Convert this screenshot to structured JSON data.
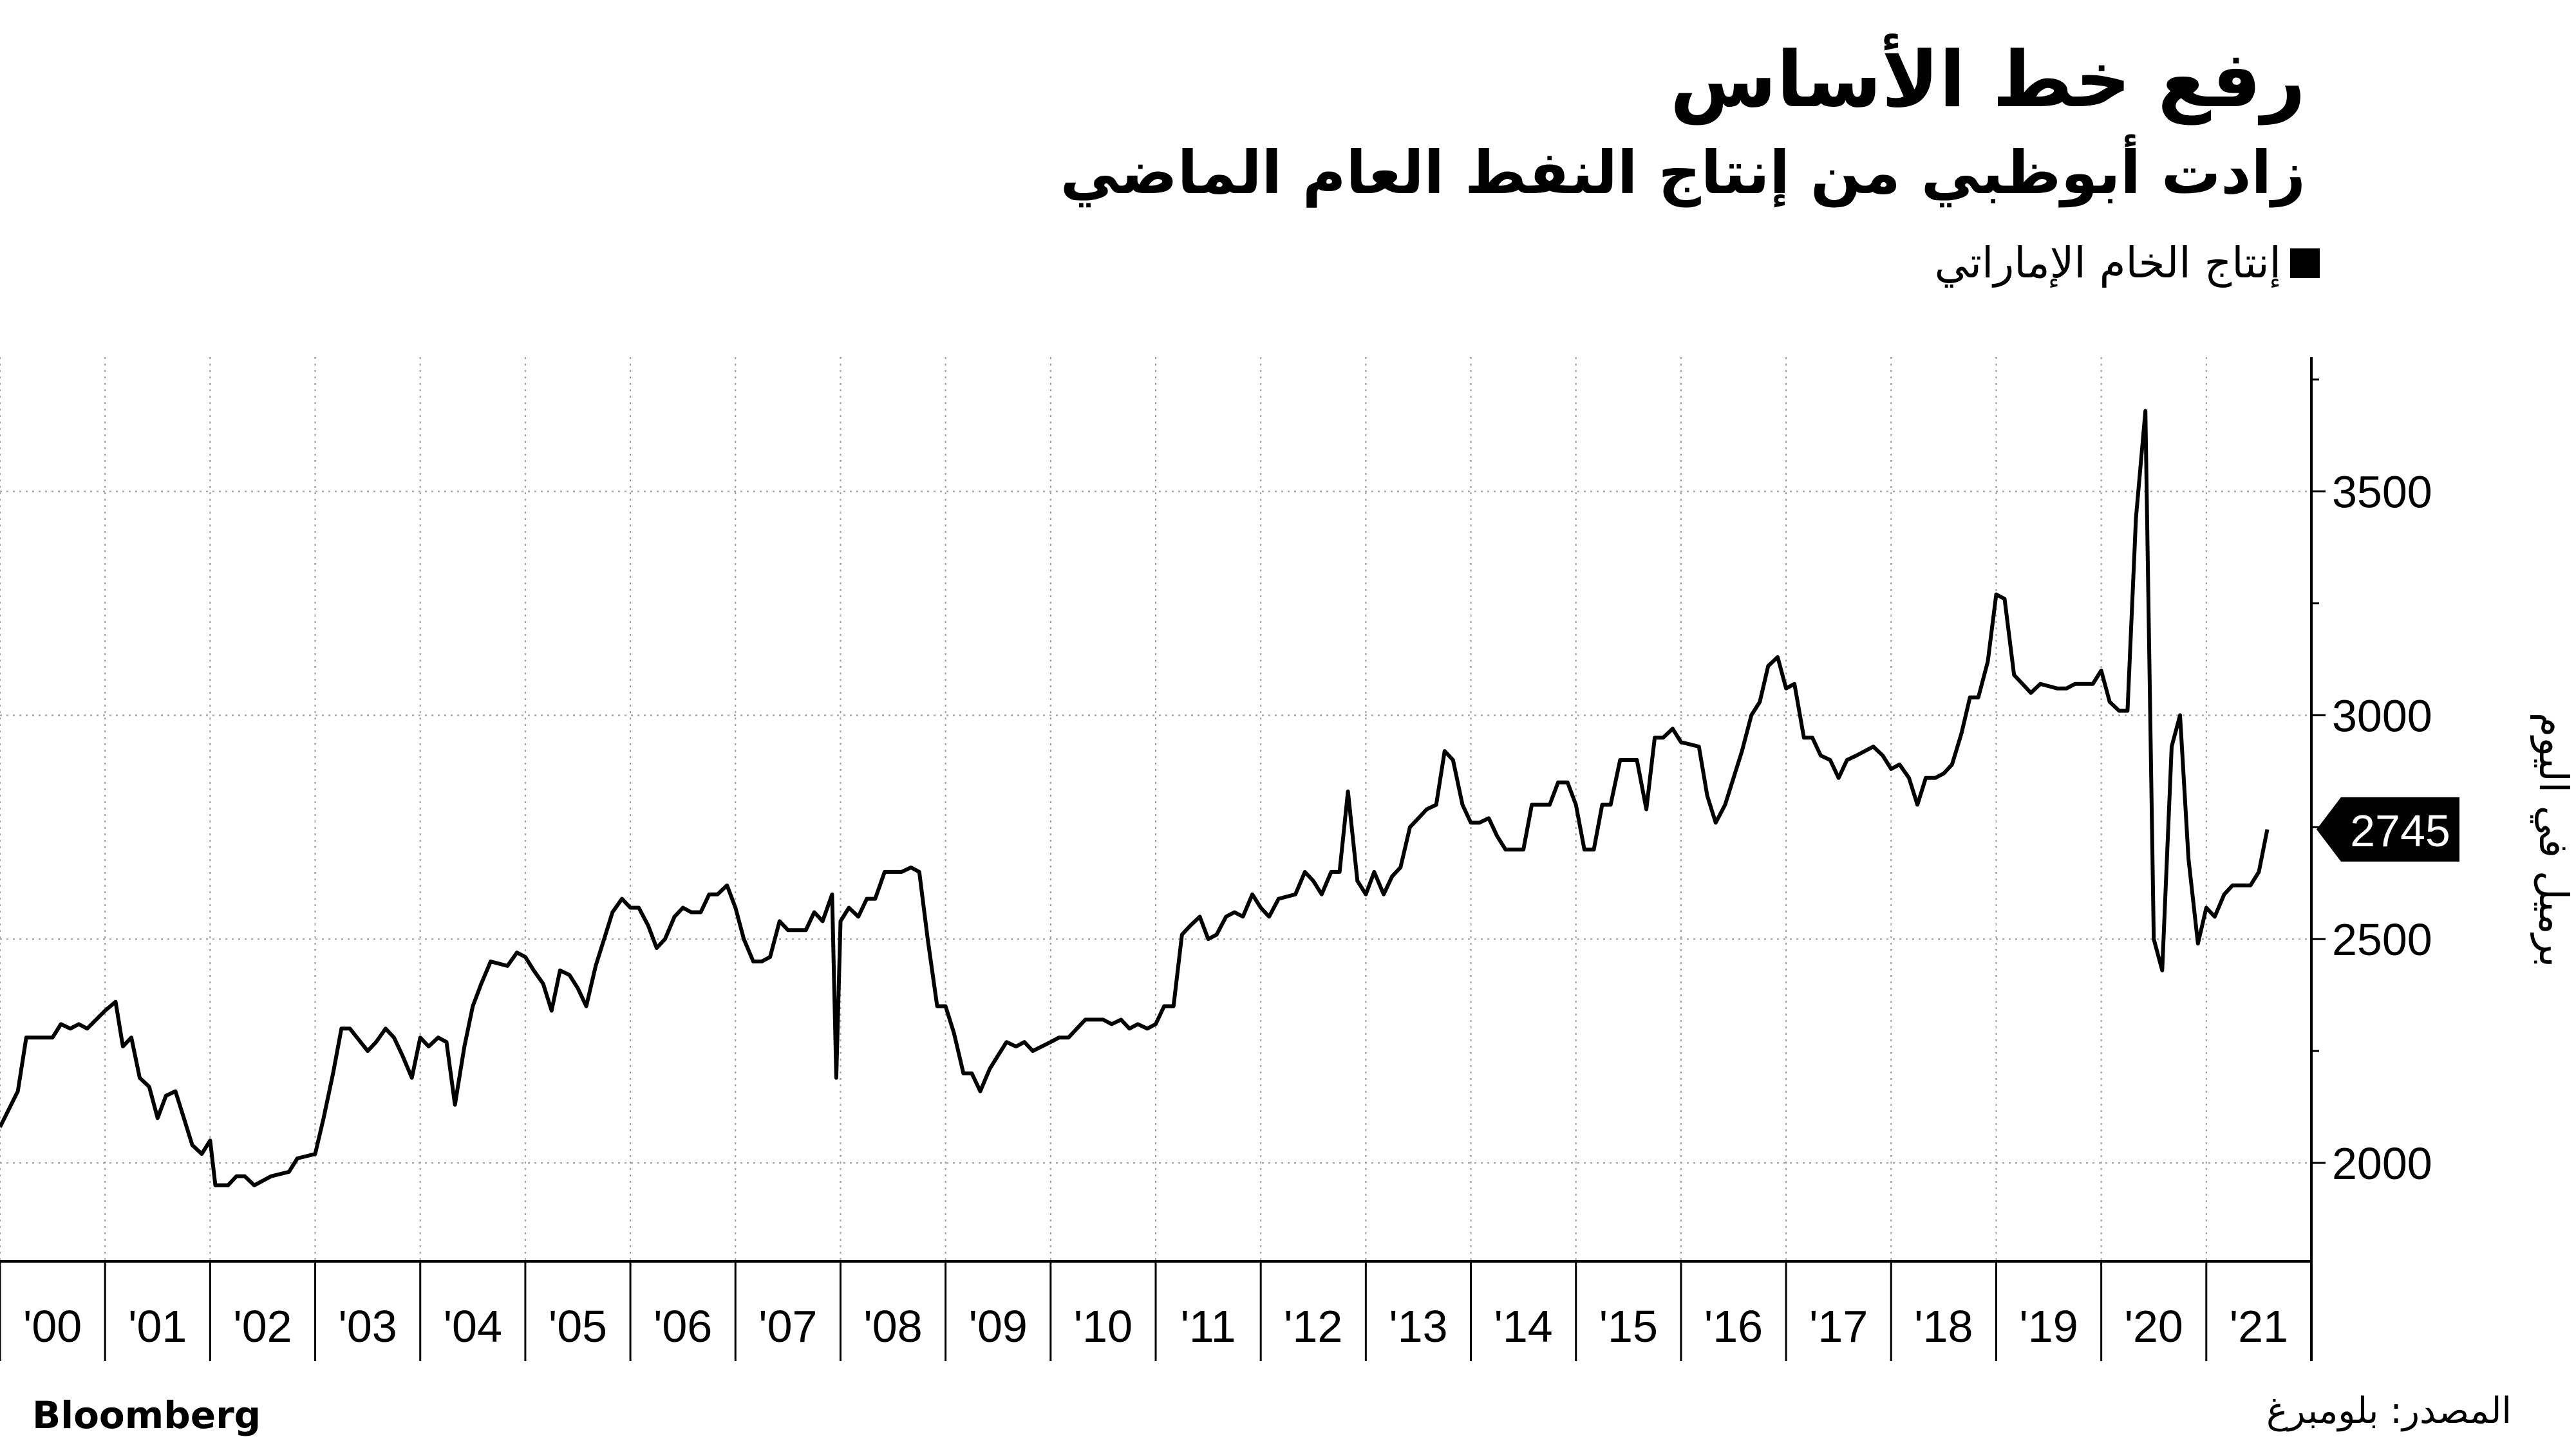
{
  "title": "رفع خط الأساس",
  "subtitle": "زادت أبوظبي من إنتاج النفط العام الماضي",
  "footer": {
    "brand": "Bloomberg",
    "source": "المصدر: بلومبرغ"
  },
  "chart_data": {
    "type": "line",
    "title": "رفع خط الأساس",
    "subtitle": "زادت أبوظبي من إنتاج النفط العام الماضي",
    "ylabel": "برميل في اليوم",
    "xlabel": "",
    "ylim": [
      1780,
      3800
    ],
    "grid": true,
    "legend_position": "top-right",
    "last_value_label": "2745",
    "x_tick_labels": [
      "'00",
      "'01",
      "'02",
      "'03",
      "'04",
      "'05",
      "'06",
      "'07",
      "'08",
      "'09",
      "'10",
      "'11",
      "'12",
      "'13",
      "'14",
      "'15",
      "'16",
      "'17",
      "'18",
      "'19",
      "'20",
      "'21"
    ],
    "y_tick_values": [
      2000,
      2500,
      3000,
      3500
    ],
    "y_tick_labels": [
      "2000",
      "2500",
      "3000",
      "3500"
    ],
    "series": [
      {
        "name": "إنتاج الخام الإماراتي",
        "color": "#000000",
        "points": [
          [
            2000.0,
            2080
          ],
          [
            2000.17,
            2160
          ],
          [
            2000.25,
            2280
          ],
          [
            2000.5,
            2280
          ],
          [
            2000.58,
            2310
          ],
          [
            2000.67,
            2300
          ],
          [
            2000.75,
            2310
          ],
          [
            2000.83,
            2300
          ],
          [
            2001.0,
            2340
          ],
          [
            2001.1,
            2360
          ],
          [
            2001.17,
            2260
          ],
          [
            2001.25,
            2280
          ],
          [
            2001.33,
            2190
          ],
          [
            2001.42,
            2170
          ],
          [
            2001.5,
            2100
          ],
          [
            2001.58,
            2150
          ],
          [
            2001.67,
            2160
          ],
          [
            2001.75,
            2100
          ],
          [
            2001.83,
            2040
          ],
          [
            2001.92,
            2020
          ],
          [
            2002.0,
            2050
          ],
          [
            2002.05,
            1950
          ],
          [
            2002.17,
            1950
          ],
          [
            2002.25,
            1970
          ],
          [
            2002.33,
            1970
          ],
          [
            2002.42,
            1950
          ],
          [
            2002.5,
            1960
          ],
          [
            2002.58,
            1970
          ],
          [
            2002.75,
            1980
          ],
          [
            2002.83,
            2010
          ],
          [
            2003.0,
            2020
          ],
          [
            2003.08,
            2100
          ],
          [
            2003.17,
            2200
          ],
          [
            2003.25,
            2300
          ],
          [
            2003.33,
            2300
          ],
          [
            2003.5,
            2250
          ],
          [
            2003.58,
            2270
          ],
          [
            2003.67,
            2300
          ],
          [
            2003.75,
            2280
          ],
          [
            2003.83,
            2240
          ],
          [
            2003.92,
            2190
          ],
          [
            2004.0,
            2280
          ],
          [
            2004.08,
            2260
          ],
          [
            2004.17,
            2280
          ],
          [
            2004.25,
            2270
          ],
          [
            2004.33,
            2130
          ],
          [
            2004.42,
            2260
          ],
          [
            2004.5,
            2350
          ],
          [
            2004.58,
            2400
          ],
          [
            2004.67,
            2450
          ],
          [
            2004.83,
            2440
          ],
          [
            2004.92,
            2470
          ],
          [
            2005.0,
            2460
          ],
          [
            2005.08,
            2430
          ],
          [
            2005.17,
            2400
          ],
          [
            2005.25,
            2340
          ],
          [
            2005.33,
            2430
          ],
          [
            2005.42,
            2420
          ],
          [
            2005.5,
            2390
          ],
          [
            2005.58,
            2350
          ],
          [
            2005.67,
            2440
          ],
          [
            2005.75,
            2500
          ],
          [
            2005.83,
            2560
          ],
          [
            2005.92,
            2590
          ],
          [
            2006.0,
            2570
          ],
          [
            2006.08,
            2570
          ],
          [
            2006.17,
            2530
          ],
          [
            2006.25,
            2480
          ],
          [
            2006.33,
            2500
          ],
          [
            2006.42,
            2550
          ],
          [
            2006.5,
            2570
          ],
          [
            2006.58,
            2560
          ],
          [
            2006.67,
            2560
          ],
          [
            2006.75,
            2600
          ],
          [
            2006.83,
            2600
          ],
          [
            2006.92,
            2620
          ],
          [
            2007.0,
            2570
          ],
          [
            2007.08,
            2500
          ],
          [
            2007.17,
            2450
          ],
          [
            2007.25,
            2450
          ],
          [
            2007.33,
            2460
          ],
          [
            2007.42,
            2540
          ],
          [
            2007.5,
            2520
          ],
          [
            2007.67,
            2520
          ],
          [
            2007.75,
            2560
          ],
          [
            2007.83,
            2540
          ],
          [
            2007.92,
            2600
          ],
          [
            2007.96,
            2190
          ],
          [
            2008.0,
            2540
          ],
          [
            2008.08,
            2570
          ],
          [
            2008.17,
            2550
          ],
          [
            2008.25,
            2590
          ],
          [
            2008.33,
            2590
          ],
          [
            2008.42,
            2650
          ],
          [
            2008.58,
            2650
          ],
          [
            2008.67,
            2660
          ],
          [
            2008.75,
            2650
          ],
          [
            2008.83,
            2500
          ],
          [
            2008.92,
            2350
          ],
          [
            2009.0,
            2350
          ],
          [
            2009.08,
            2290
          ],
          [
            2009.17,
            2200
          ],
          [
            2009.25,
            2200
          ],
          [
            2009.33,
            2160
          ],
          [
            2009.42,
            2210
          ],
          [
            2009.5,
            2240
          ],
          [
            2009.58,
            2270
          ],
          [
            2009.67,
            2260
          ],
          [
            2009.75,
            2270
          ],
          [
            2009.83,
            2250
          ],
          [
            2010.0,
            2270
          ],
          [
            2010.08,
            2280
          ],
          [
            2010.17,
            2280
          ],
          [
            2010.25,
            2300
          ],
          [
            2010.33,
            2320
          ],
          [
            2010.5,
            2320
          ],
          [
            2010.58,
            2310
          ],
          [
            2010.67,
            2320
          ],
          [
            2010.75,
            2300
          ],
          [
            2010.83,
            2310
          ],
          [
            2010.92,
            2300
          ],
          [
            2011.0,
            2310
          ],
          [
            2011.08,
            2350
          ],
          [
            2011.17,
            2350
          ],
          [
            2011.25,
            2510
          ],
          [
            2011.33,
            2530
          ],
          [
            2011.42,
            2550
          ],
          [
            2011.5,
            2500
          ],
          [
            2011.58,
            2510
          ],
          [
            2011.67,
            2550
          ],
          [
            2011.75,
            2560
          ],
          [
            2011.83,
            2550
          ],
          [
            2011.92,
            2600
          ],
          [
            2012.0,
            2570
          ],
          [
            2012.08,
            2550
          ],
          [
            2012.17,
            2590
          ],
          [
            2012.33,
            2600
          ],
          [
            2012.42,
            2650
          ],
          [
            2012.5,
            2630
          ],
          [
            2012.58,
            2600
          ],
          [
            2012.67,
            2650
          ],
          [
            2012.75,
            2650
          ],
          [
            2012.83,
            2830
          ],
          [
            2012.92,
            2630
          ],
          [
            2013.0,
            2600
          ],
          [
            2013.08,
            2650
          ],
          [
            2013.17,
            2600
          ],
          [
            2013.25,
            2640
          ],
          [
            2013.33,
            2660
          ],
          [
            2013.42,
            2750
          ],
          [
            2013.5,
            2770
          ],
          [
            2013.58,
            2790
          ],
          [
            2013.67,
            2800
          ],
          [
            2013.75,
            2920
          ],
          [
            2013.83,
            2900
          ],
          [
            2013.92,
            2800
          ],
          [
            2014.0,
            2760
          ],
          [
            2014.08,
            2760
          ],
          [
            2014.17,
            2770
          ],
          [
            2014.25,
            2730
          ],
          [
            2014.33,
            2700
          ],
          [
            2014.5,
            2700
          ],
          [
            2014.58,
            2800
          ],
          [
            2014.75,
            2800
          ],
          [
            2014.83,
            2850
          ],
          [
            2014.92,
            2850
          ],
          [
            2015.0,
            2800
          ],
          [
            2015.08,
            2700
          ],
          [
            2015.17,
            2700
          ],
          [
            2015.25,
            2800
          ],
          [
            2015.33,
            2800
          ],
          [
            2015.42,
            2900
          ],
          [
            2015.58,
            2900
          ],
          [
            2015.67,
            2790
          ],
          [
            2015.75,
            2950
          ],
          [
            2015.83,
            2950
          ],
          [
            2015.92,
            2970
          ],
          [
            2016.0,
            2940
          ],
          [
            2016.17,
            2930
          ],
          [
            2016.25,
            2820
          ],
          [
            2016.33,
            2760
          ],
          [
            2016.42,
            2800
          ],
          [
            2016.5,
            2860
          ],
          [
            2016.58,
            2920
          ],
          [
            2016.67,
            3000
          ],
          [
            2016.75,
            3030
          ],
          [
            2016.83,
            3110
          ],
          [
            2016.92,
            3130
          ],
          [
            2017.0,
            3060
          ],
          [
            2017.08,
            3070
          ],
          [
            2017.17,
            2950
          ],
          [
            2017.25,
            2950
          ],
          [
            2017.33,
            2910
          ],
          [
            2017.42,
            2900
          ],
          [
            2017.5,
            2860
          ],
          [
            2017.58,
            2900
          ],
          [
            2017.67,
            2910
          ],
          [
            2017.83,
            2930
          ],
          [
            2017.92,
            2910
          ],
          [
            2018.0,
            2880
          ],
          [
            2018.08,
            2890
          ],
          [
            2018.17,
            2860
          ],
          [
            2018.25,
            2800
          ],
          [
            2018.33,
            2860
          ],
          [
            2018.42,
            2860
          ],
          [
            2018.5,
            2870
          ],
          [
            2018.58,
            2890
          ],
          [
            2018.67,
            2960
          ],
          [
            2018.75,
            3040
          ],
          [
            2018.83,
            3040
          ],
          [
            2018.92,
            3120
          ],
          [
            2019.0,
            3270
          ],
          [
            2019.08,
            3260
          ],
          [
            2019.17,
            3090
          ],
          [
            2019.25,
            3070
          ],
          [
            2019.33,
            3050
          ],
          [
            2019.42,
            3070
          ],
          [
            2019.58,
            3060
          ],
          [
            2019.67,
            3060
          ],
          [
            2019.75,
            3070
          ],
          [
            2019.92,
            3070
          ],
          [
            2020.0,
            3100
          ],
          [
            2020.08,
            3030
          ],
          [
            2020.17,
            3010
          ],
          [
            2020.25,
            3010
          ],
          [
            2020.33,
            3440
          ],
          [
            2020.42,
            3680
          ],
          [
            2020.5,
            2500
          ],
          [
            2020.58,
            2430
          ],
          [
            2020.67,
            2930
          ],
          [
            2020.75,
            3000
          ],
          [
            2020.83,
            2680
          ],
          [
            2020.92,
            2490
          ],
          [
            2021.0,
            2570
          ],
          [
            2021.08,
            2550
          ],
          [
            2021.17,
            2600
          ],
          [
            2021.25,
            2620
          ],
          [
            2021.33,
            2620
          ],
          [
            2021.42,
            2620
          ],
          [
            2021.5,
            2650
          ],
          [
            2021.58,
            2745
          ]
        ]
      }
    ]
  }
}
